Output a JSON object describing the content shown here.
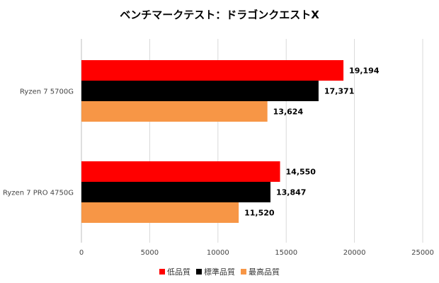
{
  "chart_data": {
    "type": "bar",
    "orientation": "horizontal",
    "title": "ベンチマークテスト：ドラゴンクエストX",
    "xlabel": "",
    "ylabel": "",
    "categories": [
      "Ryzen 7 5700G",
      "Ryzen 7 PRO 4750G"
    ],
    "series": [
      {
        "name": "低品質",
        "color": "#ff0000",
        "values": [
          19194,
          14550
        ],
        "labels": [
          "19,194",
          "14,550"
        ]
      },
      {
        "name": "標準品質",
        "color": "#000000",
        "values": [
          17371,
          13847
        ],
        "labels": [
          "17,371",
          "13,847"
        ]
      },
      {
        "name": "最高品質",
        "color": "#f79646",
        "values": [
          13624,
          11520
        ],
        "labels": [
          "13,624",
          "11,520"
        ]
      }
    ],
    "xlim": [
      0,
      25000
    ],
    "ticks": [
      "0",
      "5000",
      "10000",
      "15000",
      "20000",
      "25000"
    ],
    "grid": true,
    "legend_position": "bottom"
  }
}
